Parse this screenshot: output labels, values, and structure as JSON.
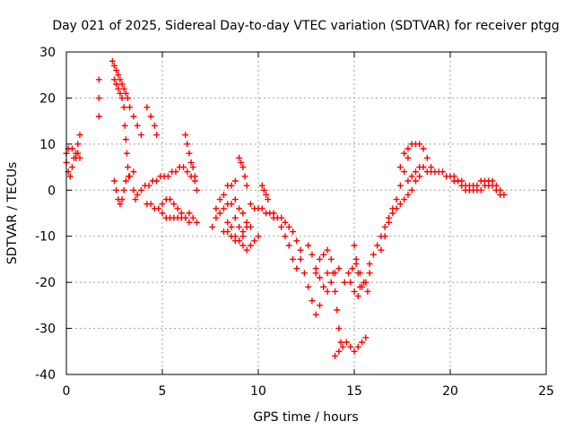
{
  "chart_data": {
    "type": "scatter",
    "title": "Day 021 of 2025, Sidereal Day-to-day VTEC variation (SDTVAR) for receiver ptgg",
    "xlabel": "GPS time / hours",
    "ylabel": "SDTVAR / TECUs",
    "xlim": [
      0,
      25
    ],
    "ylim": [
      -40,
      30
    ],
    "x_ticks": [
      "0",
      "5",
      "10",
      "15",
      "20",
      "25"
    ],
    "y_ticks": [
      "-40",
      "-30",
      "-20",
      "-10",
      "0",
      "10",
      "20",
      "30"
    ],
    "grid": true,
    "marker": "+",
    "marker_color": "#ff0000",
    "series": [
      {
        "points": [
          [
            0.0,
            6
          ],
          [
            0.1,
            4
          ],
          [
            0.2,
            3
          ],
          [
            0.3,
            5
          ],
          [
            0.4,
            7
          ],
          [
            0.5,
            8
          ],
          [
            0.6,
            10
          ],
          [
            0.7,
            12
          ],
          [
            0.0,
            8
          ],
          [
            0.1,
            9
          ],
          [
            0.3,
            9
          ],
          [
            0.5,
            7
          ],
          [
            0.6,
            8
          ],
          [
            0.7,
            7
          ],
          [
            1.7,
            24
          ],
          [
            1.7,
            20
          ],
          [
            1.7,
            16
          ],
          [
            2.4,
            28
          ],
          [
            2.5,
            27
          ],
          [
            2.6,
            26
          ],
          [
            2.7,
            25
          ],
          [
            2.8,
            24
          ],
          [
            2.9,
            23
          ],
          [
            3.0,
            22
          ],
          [
            3.1,
            21
          ],
          [
            3.2,
            20
          ],
          [
            3.3,
            18
          ],
          [
            3.5,
            16
          ],
          [
            3.7,
            14
          ],
          [
            3.9,
            12
          ],
          [
            2.5,
            24
          ],
          [
            2.6,
            23
          ],
          [
            2.7,
            22
          ],
          [
            2.8,
            21
          ],
          [
            2.9,
            20
          ],
          [
            3.0,
            18
          ],
          [
            3.05,
            14
          ],
          [
            3.1,
            11
          ],
          [
            3.15,
            8
          ],
          [
            3.2,
            5
          ],
          [
            3.25,
            3
          ],
          [
            2.5,
            2
          ],
          [
            2.6,
            0
          ],
          [
            2.7,
            -2
          ],
          [
            2.8,
            -3
          ],
          [
            2.9,
            -2
          ],
          [
            3.0,
            0
          ],
          [
            3.1,
            2
          ],
          [
            3.3,
            3
          ],
          [
            3.5,
            4
          ],
          [
            3.5,
            0
          ],
          [
            3.6,
            -2
          ],
          [
            3.7,
            -1
          ],
          [
            4.2,
            18
          ],
          [
            4.4,
            16
          ],
          [
            4.6,
            14
          ],
          [
            4.7,
            12
          ],
          [
            3.9,
            0
          ],
          [
            4.1,
            1
          ],
          [
            4.3,
            1
          ],
          [
            4.5,
            2
          ],
          [
            4.7,
            2
          ],
          [
            4.9,
            3
          ],
          [
            5.1,
            3
          ],
          [
            5.3,
            3
          ],
          [
            5.5,
            4
          ],
          [
            5.7,
            4
          ],
          [
            5.9,
            5
          ],
          [
            6.1,
            5
          ],
          [
            6.3,
            4
          ],
          [
            6.5,
            3
          ],
          [
            6.7,
            2
          ],
          [
            4.2,
            -3
          ],
          [
            4.4,
            -3
          ],
          [
            4.6,
            -4
          ],
          [
            4.8,
            -4
          ],
          [
            5.0,
            -3
          ],
          [
            5.2,
            -2
          ],
          [
            5.4,
            -2
          ],
          [
            5.6,
            -3
          ],
          [
            5.8,
            -4
          ],
          [
            6.0,
            -5
          ],
          [
            6.2,
            -6
          ],
          [
            6.4,
            -7
          ],
          [
            5.0,
            -5
          ],
          [
            5.2,
            -6
          ],
          [
            5.4,
            -6
          ],
          [
            5.6,
            -6
          ],
          [
            5.8,
            -6
          ],
          [
            6.0,
            -6
          ],
          [
            6.2,
            -6
          ],
          [
            6.4,
            -5
          ],
          [
            6.6,
            -6
          ],
          [
            6.8,
            -7
          ],
          [
            6.2,
            12
          ],
          [
            6.3,
            10
          ],
          [
            6.4,
            8
          ],
          [
            6.5,
            6
          ],
          [
            6.6,
            5
          ],
          [
            6.7,
            3
          ],
          [
            6.8,
            0
          ],
          [
            7.6,
            -8
          ],
          [
            7.8,
            -6
          ],
          [
            8.0,
            -5
          ],
          [
            8.2,
            -4
          ],
          [
            8.4,
            -3
          ],
          [
            8.6,
            -3
          ],
          [
            8.8,
            -6
          ],
          [
            9.0,
            -8
          ],
          [
            9.2,
            -9
          ],
          [
            9.4,
            -8
          ],
          [
            7.8,
            -4
          ],
          [
            8.0,
            -2
          ],
          [
            8.2,
            -1
          ],
          [
            8.4,
            1
          ],
          [
            8.6,
            1
          ],
          [
            8.8,
            2
          ],
          [
            8.4,
            -7
          ],
          [
            8.6,
            -8
          ],
          [
            8.8,
            -10
          ],
          [
            9.0,
            -11
          ],
          [
            9.2,
            -12
          ],
          [
            9.4,
            -13
          ],
          [
            9.6,
            -12
          ],
          [
            9.8,
            -11
          ],
          [
            10.0,
            -10
          ],
          [
            8.2,
            -9
          ],
          [
            8.4,
            -9
          ],
          [
            8.6,
            -10
          ],
          [
            8.8,
            -11
          ],
          [
            9.0,
            -11
          ],
          [
            9.2,
            -10
          ],
          [
            8.8,
            -2
          ],
          [
            9.0,
            -4
          ],
          [
            9.2,
            -5
          ],
          [
            9.4,
            -7
          ],
          [
            9.6,
            -8
          ],
          [
            9.0,
            7
          ],
          [
            9.1,
            6
          ],
          [
            9.2,
            5
          ],
          [
            9.3,
            3
          ],
          [
            9.4,
            1
          ],
          [
            9.6,
            -3
          ],
          [
            9.8,
            -4
          ],
          [
            10.0,
            -4
          ],
          [
            10.2,
            -4
          ],
          [
            10.4,
            -5
          ],
          [
            10.6,
            -5
          ],
          [
            10.8,
            -6
          ],
          [
            10.2,
            1
          ],
          [
            10.3,
            0
          ],
          [
            10.4,
            -1
          ],
          [
            10.5,
            -2
          ],
          [
            10.8,
            -5
          ],
          [
            11.0,
            -6
          ],
          [
            11.2,
            -8
          ],
          [
            11.4,
            -10
          ],
          [
            11.6,
            -12
          ],
          [
            11.8,
            -15
          ],
          [
            12.0,
            -17
          ],
          [
            11.2,
            -6
          ],
          [
            11.4,
            -7
          ],
          [
            11.6,
            -8
          ],
          [
            11.8,
            -9
          ],
          [
            12.0,
            -11
          ],
          [
            12.2,
            -13
          ],
          [
            12.2,
            -15
          ],
          [
            12.4,
            -18
          ],
          [
            12.6,
            -21
          ],
          [
            12.8,
            -24
          ],
          [
            13.0,
            -27
          ],
          [
            13.2,
            -25
          ],
          [
            13.4,
            -21
          ],
          [
            13.6,
            -18
          ],
          [
            12.6,
            -12
          ],
          [
            12.8,
            -14
          ],
          [
            13.0,
            -17
          ],
          [
            13.2,
            -19
          ],
          [
            13.4,
            -21
          ],
          [
            13.6,
            -22
          ],
          [
            13.8,
            -20
          ],
          [
            14.0,
            -18
          ],
          [
            14.2,
            -17
          ],
          [
            13.0,
            -18
          ],
          [
            13.2,
            -15
          ],
          [
            13.4,
            -14
          ],
          [
            13.6,
            -13
          ],
          [
            13.8,
            -15
          ],
          [
            13.9,
            -18
          ],
          [
            14.0,
            -22
          ],
          [
            14.1,
            -26
          ],
          [
            14.2,
            -30
          ],
          [
            14.3,
            -33
          ],
          [
            14.0,
            -36
          ],
          [
            14.2,
            -35
          ],
          [
            14.4,
            -34
          ],
          [
            14.6,
            -33
          ],
          [
            14.8,
            -34
          ],
          [
            15.0,
            -35
          ],
          [
            15.2,
            -34
          ],
          [
            15.4,
            -33
          ],
          [
            15.6,
            -32
          ],
          [
            14.5,
            -20
          ],
          [
            14.7,
            -18
          ],
          [
            14.9,
            -17
          ],
          [
            15.1,
            -16
          ],
          [
            15.3,
            -18
          ],
          [
            15.5,
            -20
          ],
          [
            15.7,
            -22
          ],
          [
            14.8,
            -20
          ],
          [
            15.0,
            -22
          ],
          [
            15.2,
            -23
          ],
          [
            15.4,
            -21
          ],
          [
            15.6,
            -20
          ],
          [
            15.8,
            -18
          ],
          [
            15.0,
            -12
          ],
          [
            15.1,
            -15
          ],
          [
            15.2,
            -18
          ],
          [
            15.3,
            -21
          ],
          [
            15.8,
            -16
          ],
          [
            16.0,
            -14
          ],
          [
            16.2,
            -12
          ],
          [
            16.4,
            -10
          ],
          [
            16.6,
            -8
          ],
          [
            16.8,
            -6
          ],
          [
            17.0,
            -4
          ],
          [
            17.2,
            -2
          ],
          [
            17.4,
            1
          ],
          [
            17.6,
            4
          ],
          [
            17.8,
            7
          ],
          [
            16.4,
            -13
          ],
          [
            16.6,
            -10
          ],
          [
            16.8,
            -7
          ],
          [
            17.0,
            -5
          ],
          [
            17.2,
            -4
          ],
          [
            17.4,
            -3
          ],
          [
            17.4,
            5
          ],
          [
            17.6,
            8
          ],
          [
            17.8,
            9
          ],
          [
            18.0,
            10
          ],
          [
            18.2,
            10
          ],
          [
            18.4,
            10
          ],
          [
            18.6,
            9
          ],
          [
            18.8,
            7
          ],
          [
            19.0,
            5
          ],
          [
            17.8,
            2
          ],
          [
            18.0,
            3
          ],
          [
            18.2,
            4
          ],
          [
            18.4,
            5
          ],
          [
            18.6,
            5
          ],
          [
            18.8,
            4
          ],
          [
            19.0,
            4
          ],
          [
            19.2,
            4
          ],
          [
            17.6,
            -2
          ],
          [
            17.8,
            -1
          ],
          [
            18.0,
            0
          ],
          [
            18.2,
            2
          ],
          [
            18.4,
            3
          ],
          [
            19.4,
            4
          ],
          [
            19.6,
            4
          ],
          [
            19.8,
            3
          ],
          [
            20.0,
            3
          ],
          [
            20.2,
            3
          ],
          [
            20.4,
            2
          ],
          [
            20.6,
            2
          ],
          [
            20.8,
            1
          ],
          [
            21.0,
            1
          ],
          [
            21.2,
            1
          ],
          [
            21.4,
            1
          ],
          [
            21.6,
            2
          ],
          [
            21.8,
            2
          ],
          [
            22.0,
            2
          ],
          [
            22.2,
            2
          ],
          [
            22.4,
            1
          ],
          [
            22.6,
            0
          ],
          [
            22.8,
            -1
          ],
          [
            20.2,
            2
          ],
          [
            20.4,
            2
          ],
          [
            20.6,
            1
          ],
          [
            20.8,
            0
          ],
          [
            21.0,
            0
          ],
          [
            21.2,
            0
          ],
          [
            21.4,
            0
          ],
          [
            21.6,
            0
          ],
          [
            21.8,
            1
          ],
          [
            22.0,
            1
          ],
          [
            22.2,
            1
          ],
          [
            22.4,
            0
          ],
          [
            22.6,
            -1
          ]
        ]
      }
    ]
  }
}
